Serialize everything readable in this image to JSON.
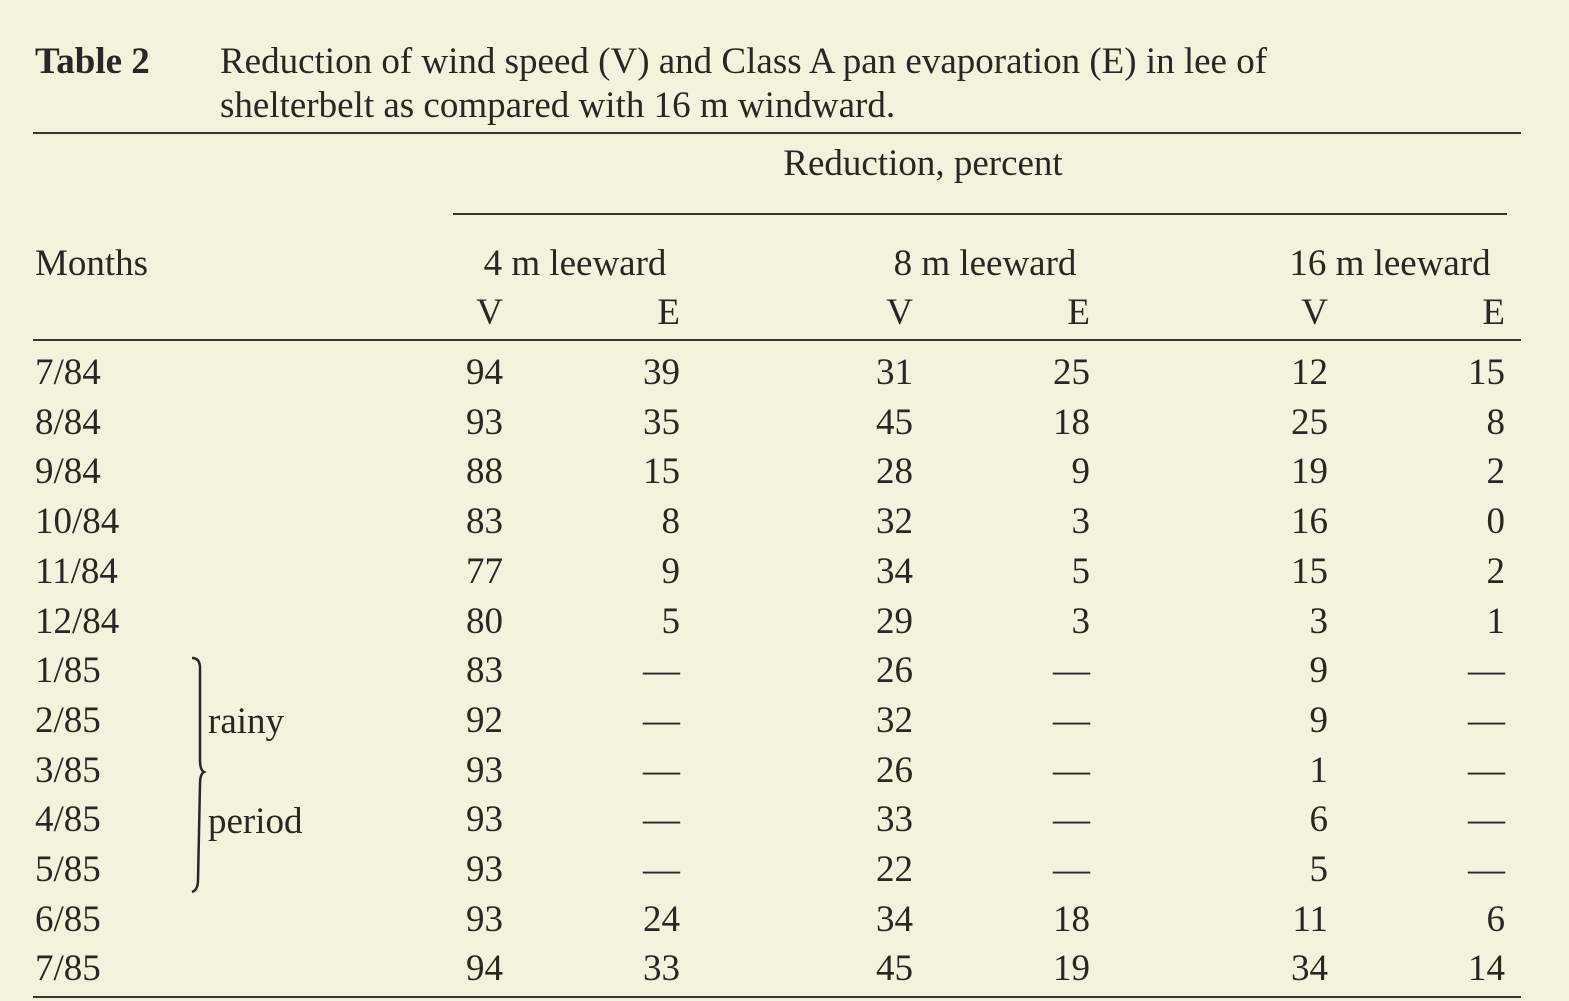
{
  "table": {
    "label": "Table 2",
    "caption": [
      "Reduction of wind speed (V) and Class A pan evaporation (E) in lee of",
      "shelterbelt as compared with 16 m windward."
    ],
    "spanner": "Reduction, percent",
    "row_header": "Months",
    "groups": [
      "4 m leeward",
      "8 m leeward",
      "16 m leeward"
    ],
    "subheaders": [
      "V",
      "E",
      "V",
      "E",
      "V",
      "E"
    ],
    "note": [
      "rainy",
      "period"
    ],
    "rows": [
      [
        "7/84",
        94,
        39,
        31,
        25,
        12,
        15
      ],
      [
        "8/84",
        93,
        35,
        45,
        18,
        25,
        8
      ],
      [
        "9/84",
        88,
        15,
        28,
        9,
        19,
        2
      ],
      [
        "10/84",
        83,
        8,
        32,
        3,
        16,
        0
      ],
      [
        "11/84",
        77,
        9,
        34,
        5,
        15,
        2
      ],
      [
        "12/84",
        80,
        5,
        29,
        3,
        3,
        1
      ],
      [
        "1/85",
        83,
        "—",
        26,
        "—",
        9,
        "—"
      ],
      [
        "2/85",
        92,
        "—",
        32,
        "—",
        9,
        "—"
      ],
      [
        "3/85",
        93,
        "—",
        26,
        "—",
        1,
        "—"
      ],
      [
        "4/85",
        93,
        "—",
        33,
        "—",
        6,
        "—"
      ],
      [
        "5/85",
        93,
        "—",
        22,
        "—",
        5,
        "—"
      ],
      [
        "6/85",
        93,
        24,
        34,
        18,
        11,
        6
      ],
      [
        "7/85",
        94,
        33,
        45,
        19,
        34,
        14
      ]
    ]
  }
}
